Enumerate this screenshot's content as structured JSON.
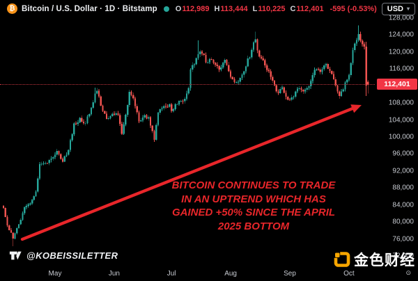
{
  "header": {
    "symbol": "Bitcoin / U.S. Dollar",
    "interval": "1D",
    "exchange": "Bitstamp",
    "ohlc": {
      "o_label": "O",
      "o_value": "112,989",
      "h_label": "H",
      "h_value": "113,444",
      "l_label": "L",
      "l_value": "110,225",
      "c_label": "C",
      "c_value": "112,401",
      "change": "-595 (-0.53%)"
    },
    "currency": "USD"
  },
  "watermark": {
    "handle": "@KOBEISSILETTER"
  },
  "brand": {
    "name": "金色财经"
  },
  "annotation": {
    "lines": [
      "BITCOIN CONTINUES TO TRADE",
      "IN AN UPTREND WHICH HAS",
      "GAINED +50% SINCE THE APRIL",
      "2025 BOTTOM"
    ]
  },
  "colors": {
    "up": "#26a69a",
    "down": "#ef5350",
    "last_price_bg": "#f23645",
    "value_red": "#f23645",
    "annotation_red": "#e8262a",
    "arrow_red": "#e8262a",
    "bitcoin_orange": "#f7931a",
    "brand_orange": "#f7a600",
    "status_dot": "#26a69a"
  },
  "chart_data": {
    "type": "candlestick",
    "symbol": "Bitcoin / U.S. Dollar",
    "interval": "1D",
    "exchange": "Bitstamp",
    "title": "Bitcoin / U.S. Dollar · 1D · Bitstamp",
    "ohlc_today": {
      "open": 112989,
      "high": 113444,
      "low": 110225,
      "close": 112401,
      "change": -595,
      "change_pct": -0.53
    },
    "last_price": {
      "label": "112,401",
      "value": 112401
    },
    "y_axis": {
      "min": 72000,
      "max": 128000,
      "tick_step": 4000,
      "labels": [
        "128,000",
        "124,000",
        "120,000",
        "116,000",
        "108,000",
        "104,000",
        "100,000",
        "96,000",
        "92,000",
        "88,000",
        "84,000",
        "80,000",
        "76,000",
        "72,000"
      ]
    },
    "x_axis": {
      "ticks": [
        {
          "label": "May",
          "day": 27
        },
        {
          "label": "Jun",
          "day": 58
        },
        {
          "label": "Jul",
          "day": 88
        },
        {
          "label": "Aug",
          "day": 119
        },
        {
          "label": "Sep",
          "day": 150
        },
        {
          "label": "Oct",
          "day": 181
        }
      ]
    },
    "price_keypoints": [
      [
        0,
        83000
      ],
      [
        2,
        79000
      ],
      [
        5,
        76300
      ],
      [
        8,
        79500
      ],
      [
        11,
        83500
      ],
      [
        14,
        84500
      ],
      [
        17,
        87300
      ],
      [
        19,
        93400
      ],
      [
        22,
        93800
      ],
      [
        25,
        94600
      ],
      [
        28,
        96400
      ],
      [
        31,
        94200
      ],
      [
        34,
        97100
      ],
      [
        37,
        102800
      ],
      [
        40,
        104100
      ],
      [
        43,
        103300
      ],
      [
        46,
        106400
      ],
      [
        48,
        110700
      ],
      [
        49,
        111200
      ],
      [
        51,
        107300
      ],
      [
        54,
        104100
      ],
      [
        57,
        105600
      ],
      [
        60,
        105400
      ],
      [
        62,
        100700
      ],
      [
        64,
        105700
      ],
      [
        66,
        110200
      ],
      [
        68,
        108600
      ],
      [
        71,
        103900
      ],
      [
        74,
        105300
      ],
      [
        76,
        104200
      ],
      [
        79,
        99600
      ],
      [
        81,
        105900
      ],
      [
        84,
        107300
      ],
      [
        87,
        107200
      ],
      [
        88,
        105700
      ],
      [
        91,
        108200
      ],
      [
        94,
        108000
      ],
      [
        97,
        111300
      ],
      [
        98,
        116000
      ],
      [
        100,
        117600
      ],
      [
        102,
        119900
      ],
      [
        104,
        120100
      ],
      [
        106,
        117600
      ],
      [
        108,
        118600
      ],
      [
        111,
        117400
      ],
      [
        113,
        115900
      ],
      [
        116,
        118200
      ],
      [
        118,
        115700
      ],
      [
        120,
        113400
      ],
      [
        122,
        112700
      ],
      [
        125,
        114300
      ],
      [
        127,
        117000
      ],
      [
        129,
        119000
      ],
      [
        132,
        123300
      ],
      [
        134,
        118400
      ],
      [
        137,
        117400
      ],
      [
        139,
        115000
      ],
      [
        141,
        112900
      ],
      [
        144,
        110200
      ],
      [
        146,
        111900
      ],
      [
        149,
        108400
      ],
      [
        151,
        109300
      ],
      [
        154,
        111300
      ],
      [
        157,
        110900
      ],
      [
        160,
        112200
      ],
      [
        163,
        115600
      ],
      [
        166,
        115400
      ],
      [
        168,
        117200
      ],
      [
        171,
        115800
      ],
      [
        174,
        112600
      ],
      [
        176,
        109300
      ],
      [
        179,
        112400
      ],
      [
        181,
        114200
      ],
      [
        183,
        120800
      ],
      [
        185,
        123200
      ],
      [
        186,
        124500
      ],
      [
        188,
        122000
      ],
      [
        189,
        121300
      ]
    ],
    "wick_spikes": [
      [
        5,
        0,
        1600
      ],
      [
        48,
        900,
        0
      ],
      [
        102,
        3100,
        0
      ],
      [
        132,
        1200,
        0
      ],
      [
        186,
        1700,
        0
      ]
    ],
    "final_candles": [
      [
        121300,
        122400,
        109700,
        112100
      ],
      [
        112989,
        113444,
        110225,
        112401
      ]
    ]
  }
}
